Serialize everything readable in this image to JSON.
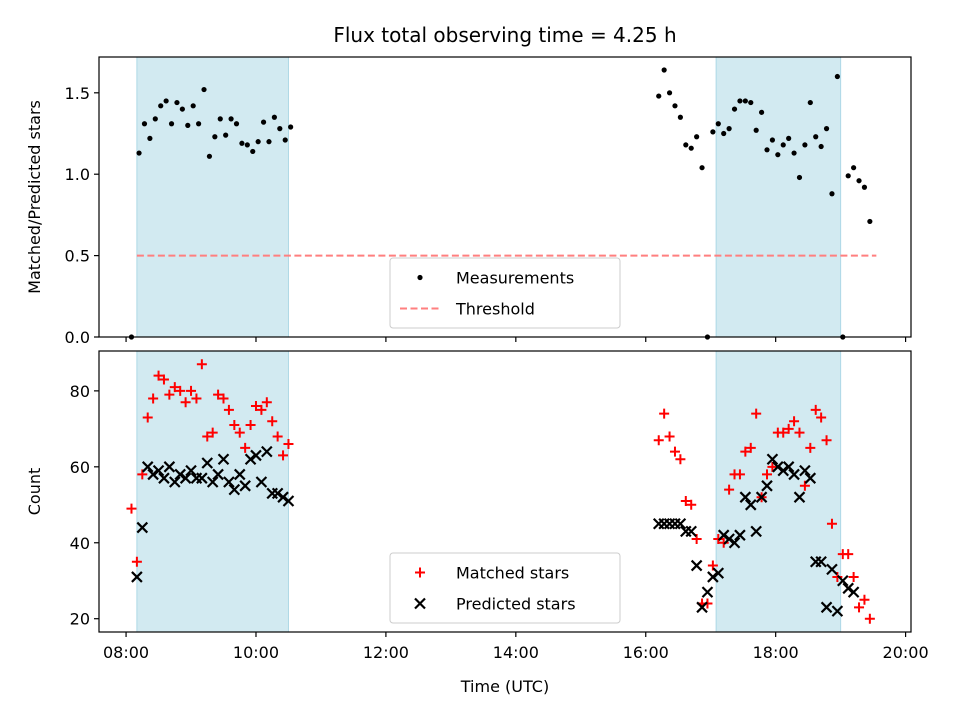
{
  "figure": {
    "title": "Flux total observing time = 4.25 h"
  },
  "chart_data": [
    {
      "type": "scatter",
      "panel": "top",
      "ylabel": "Matched/Predicted stars",
      "xlabel": "",
      "xlim": [
        "07:35",
        "20:05"
      ],
      "ylim": [
        0,
        1.72
      ],
      "yticks": [
        0.0,
        0.5,
        1.0,
        1.5
      ],
      "ytick_labels": [
        "0.0",
        "0.5",
        "1.0",
        "1.5"
      ],
      "xticks": [
        "08:00",
        "10:00",
        "12:00",
        "14:00",
        "16:00",
        "18:00",
        "20:00"
      ],
      "shaded_intervals": [
        [
          "08:10",
          "10:30"
        ],
        [
          "17:05",
          "19:00"
        ]
      ],
      "shade_color": "#add8e6",
      "threshold": {
        "name": "Threshold",
        "value": 0.5,
        "x_range": [
          "08:10",
          "19:33"
        ],
        "color": "#ff7f7f",
        "style": "dashed"
      },
      "legend_placement": "lower-center",
      "series": [
        {
          "name": "Measurements",
          "marker": "dot",
          "color": "#000000",
          "points": [
            [
              "08:05",
              0.0
            ],
            [
              "08:12",
              1.13
            ],
            [
              "08:17",
              1.31
            ],
            [
              "08:22",
              1.22
            ],
            [
              "08:27",
              1.34
            ],
            [
              "08:32",
              1.42
            ],
            [
              "08:37",
              1.45
            ],
            [
              "08:42",
              1.31
            ],
            [
              "08:47",
              1.44
            ],
            [
              "08:52",
              1.4
            ],
            [
              "08:57",
              1.3
            ],
            [
              "09:02",
              1.42
            ],
            [
              "09:07",
              1.31
            ],
            [
              "09:12",
              1.52
            ],
            [
              "09:17",
              1.11
            ],
            [
              "09:22",
              1.23
            ],
            [
              "09:27",
              1.34
            ],
            [
              "09:32",
              1.24
            ],
            [
              "09:37",
              1.34
            ],
            [
              "09:42",
              1.31
            ],
            [
              "09:47",
              1.19
            ],
            [
              "09:52",
              1.18
            ],
            [
              "09:57",
              1.14
            ],
            [
              "10:02",
              1.2
            ],
            [
              "10:07",
              1.32
            ],
            [
              "10:12",
              1.2
            ],
            [
              "10:17",
              1.35
            ],
            [
              "10:22",
              1.28
            ],
            [
              "10:27",
              1.21
            ],
            [
              "10:32",
              1.29
            ],
            [
              "16:12",
              1.48
            ],
            [
              "16:17",
              1.64
            ],
            [
              "16:22",
              1.5
            ],
            [
              "16:27",
              1.42
            ],
            [
              "16:32",
              1.35
            ],
            [
              "16:37",
              1.18
            ],
            [
              "16:42",
              1.16
            ],
            [
              "16:47",
              1.23
            ],
            [
              "16:52",
              1.04
            ],
            [
              "16:57",
              0.0
            ],
            [
              "17:02",
              1.26
            ],
            [
              "17:07",
              1.31
            ],
            [
              "17:12",
              1.25
            ],
            [
              "17:17",
              1.28
            ],
            [
              "17:22",
              1.4
            ],
            [
              "17:27",
              1.45
            ],
            [
              "17:32",
              1.45
            ],
            [
              "17:37",
              1.44
            ],
            [
              "17:42",
              1.27
            ],
            [
              "17:47",
              1.38
            ],
            [
              "17:52",
              1.15
            ],
            [
              "17:57",
              1.21
            ],
            [
              "18:02",
              1.12
            ],
            [
              "18:07",
              1.18
            ],
            [
              "18:12",
              1.22
            ],
            [
              "18:17",
              1.13
            ],
            [
              "18:22",
              0.98
            ],
            [
              "18:27",
              1.18
            ],
            [
              "18:32",
              1.44
            ],
            [
              "18:37",
              1.23
            ],
            [
              "18:42",
              1.17
            ],
            [
              "18:47",
              1.28
            ],
            [
              "18:52",
              0.88
            ],
            [
              "18:57",
              1.6
            ],
            [
              "19:02",
              0.0
            ],
            [
              "19:07",
              0.99
            ],
            [
              "19:12",
              1.04
            ],
            [
              "19:17",
              0.96
            ],
            [
              "19:22",
              0.92
            ],
            [
              "19:27",
              0.71
            ]
          ]
        }
      ]
    },
    {
      "type": "scatter",
      "panel": "bottom",
      "ylabel": "Count",
      "xlabel": "Time (UTC)",
      "xlim": [
        "07:35",
        "20:05"
      ],
      "ylim": [
        16.5,
        90.5
      ],
      "yticks": [
        20,
        40,
        60,
        80
      ],
      "ytick_labels": [
        "20",
        "40",
        "60",
        "80"
      ],
      "xticks": [
        "08:00",
        "10:00",
        "12:00",
        "14:00",
        "16:00",
        "18:00",
        "20:00"
      ],
      "xtick_labels": [
        "08:00",
        "10:00",
        "12:00",
        "14:00",
        "16:00",
        "18:00",
        "20:00"
      ],
      "shaded_intervals": [
        [
          "08:10",
          "10:30"
        ],
        [
          "17:05",
          "19:00"
        ]
      ],
      "shade_color": "#add8e6",
      "legend_placement": "lower-center",
      "series": [
        {
          "name": "Matched stars",
          "marker": "plus",
          "color": "#ff0000",
          "points": [
            [
              "08:05",
              49
            ],
            [
              "08:10",
              35
            ],
            [
              "08:15",
              58
            ],
            [
              "08:20",
              73
            ],
            [
              "08:25",
              78
            ],
            [
              "08:30",
              84
            ],
            [
              "08:35",
              83
            ],
            [
              "08:40",
              79
            ],
            [
              "08:45",
              81
            ],
            [
              "08:50",
              80
            ],
            [
              "08:55",
              77
            ],
            [
              "09:00",
              80
            ],
            [
              "09:05",
              78
            ],
            [
              "09:10",
              87
            ],
            [
              "09:15",
              68
            ],
            [
              "09:20",
              69
            ],
            [
              "09:25",
              79
            ],
            [
              "09:30",
              78
            ],
            [
              "09:35",
              75
            ],
            [
              "09:40",
              71
            ],
            [
              "09:45",
              69
            ],
            [
              "09:50",
              65
            ],
            [
              "09:55",
              71
            ],
            [
              "10:00",
              76
            ],
            [
              "10:05",
              75
            ],
            [
              "10:10",
              77
            ],
            [
              "10:15",
              72
            ],
            [
              "10:20",
              68
            ],
            [
              "10:25",
              63
            ],
            [
              "10:30",
              66
            ],
            [
              "16:12",
              67
            ],
            [
              "16:17",
              74
            ],
            [
              "16:22",
              68
            ],
            [
              "16:27",
              64
            ],
            [
              "16:32",
              62
            ],
            [
              "16:37",
              51
            ],
            [
              "16:42",
              50
            ],
            [
              "16:47",
              41
            ],
            [
              "16:52",
              24
            ],
            [
              "16:57",
              24
            ],
            [
              "17:02",
              34
            ],
            [
              "17:07",
              41
            ],
            [
              "17:12",
              40
            ],
            [
              "17:17",
              54
            ],
            [
              "17:22",
              58
            ],
            [
              "17:27",
              58
            ],
            [
              "17:32",
              64
            ],
            [
              "17:37",
              65
            ],
            [
              "17:42",
              74
            ],
            [
              "17:47",
              52
            ],
            [
              "17:52",
              58
            ],
            [
              "17:57",
              60
            ],
            [
              "18:02",
              69
            ],
            [
              "18:07",
              69
            ],
            [
              "18:12",
              70
            ],
            [
              "18:17",
              72
            ],
            [
              "18:22",
              69
            ],
            [
              "18:27",
              55
            ],
            [
              "18:32",
              65
            ],
            [
              "18:37",
              75
            ],
            [
              "18:42",
              73
            ],
            [
              "18:47",
              67
            ],
            [
              "18:52",
              45
            ],
            [
              "18:57",
              31
            ],
            [
              "19:02",
              37
            ],
            [
              "19:07",
              37
            ],
            [
              "19:12",
              31
            ],
            [
              "19:17",
              23
            ],
            [
              "19:22",
              25
            ],
            [
              "19:27",
              20
            ]
          ]
        },
        {
          "name": "Predicted stars",
          "marker": "x",
          "color": "#000000",
          "points": [
            [
              "08:10",
              31
            ],
            [
              "08:15",
              44
            ],
            [
              "08:20",
              60
            ],
            [
              "08:25",
              58
            ],
            [
              "08:30",
              59
            ],
            [
              "08:35",
              57
            ],
            [
              "08:40",
              60
            ],
            [
              "08:45",
              56
            ],
            [
              "08:50",
              58
            ],
            [
              "08:55",
              57
            ],
            [
              "09:00",
              59
            ],
            [
              "09:05",
              57
            ],
            [
              "09:10",
              57
            ],
            [
              "09:15",
              61
            ],
            [
              "09:20",
              56
            ],
            [
              "09:25",
              58
            ],
            [
              "09:30",
              62
            ],
            [
              "09:35",
              56
            ],
            [
              "09:40",
              54
            ],
            [
              "09:45",
              58
            ],
            [
              "09:50",
              55
            ],
            [
              "09:55",
              62
            ],
            [
              "10:00",
              63
            ],
            [
              "10:05",
              56
            ],
            [
              "10:10",
              64
            ],
            [
              "10:15",
              53
            ],
            [
              "10:20",
              53
            ],
            [
              "10:25",
              52
            ],
            [
              "10:30",
              51
            ],
            [
              "16:12",
              45
            ],
            [
              "16:17",
              45
            ],
            [
              "16:22",
              45
            ],
            [
              "16:27",
              45
            ],
            [
              "16:32",
              45
            ],
            [
              "16:37",
              43
            ],
            [
              "16:42",
              43
            ],
            [
              "16:47",
              34
            ],
            [
              "16:52",
              23
            ],
            [
              "16:57",
              27
            ],
            [
              "17:02",
              31
            ],
            [
              "17:07",
              32
            ],
            [
              "17:12",
              42
            ],
            [
              "17:17",
              41
            ],
            [
              "17:22",
              40
            ],
            [
              "17:27",
              42
            ],
            [
              "17:32",
              52
            ],
            [
              "17:37",
              50
            ],
            [
              "17:42",
              43
            ],
            [
              "17:47",
              52
            ],
            [
              "17:52",
              55
            ],
            [
              "17:57",
              62
            ],
            [
              "18:02",
              60
            ],
            [
              "18:07",
              59
            ],
            [
              "18:12",
              60
            ],
            [
              "18:17",
              58
            ],
            [
              "18:22",
              52
            ],
            [
              "18:27",
              59
            ],
            [
              "18:32",
              57
            ],
            [
              "18:37",
              35
            ],
            [
              "18:42",
              35
            ],
            [
              "18:47",
              23
            ],
            [
              "18:52",
              33
            ],
            [
              "18:57",
              22
            ],
            [
              "19:02",
              30
            ],
            [
              "19:07",
              28
            ],
            [
              "19:12",
              27
            ]
          ]
        }
      ]
    }
  ]
}
